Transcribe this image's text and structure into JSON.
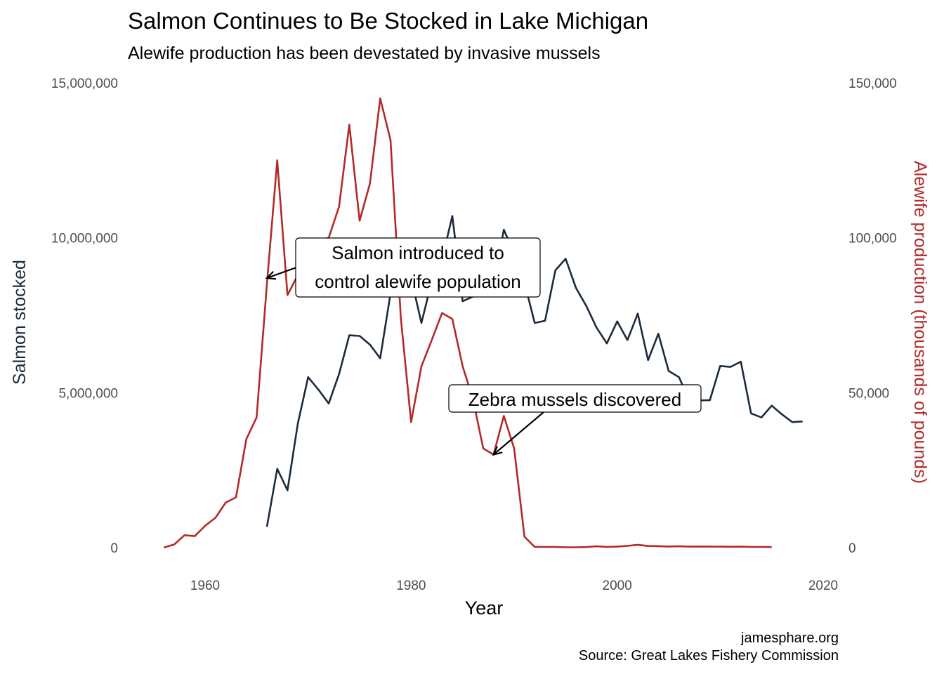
{
  "chart_data": {
    "type": "line",
    "title": "Salmon Continues to Be Stocked in Lake Michigan",
    "subtitle": "Alewife production has been devestated by invasive mussels",
    "xlabel": "Year",
    "ylabel": "Salmon stocked",
    "y2label": "Alewife production (thousands of pounds)",
    "xlim": [
      1952.5,
      2021.5
    ],
    "ylim": [
      -750000,
      15000000
    ],
    "y2lim": [
      -7500,
      150000
    ],
    "x_ticks": [
      1960,
      1980,
      2000,
      2020
    ],
    "x_tick_labels": [
      "1960",
      "1980",
      "2000",
      "2020"
    ],
    "y_ticks": [
      0,
      5000000,
      10000000,
      15000000
    ],
    "y_tick_labels": [
      "0",
      "5,000,000",
      "10,000,000",
      "15,000,000"
    ],
    "y2_ticks": [
      0,
      50000,
      100000,
      150000
    ],
    "y2_tick_labels": [
      "0",
      "50,000",
      "100,000",
      "150,000"
    ],
    "grid": false,
    "colors": {
      "salmon": "#1c2b3c",
      "alewife": "#b22a2a"
    },
    "series": [
      {
        "key": "salmon",
        "axis": "left",
        "x": [
          1966,
          1967,
          1968,
          1969,
          1970,
          1971,
          1972,
          1973,
          1974,
          1975,
          1976,
          1977,
          1978,
          1979,
          1980,
          1981,
          1982,
          1983,
          1984,
          1985,
          1986,
          1987,
          1988,
          1989,
          1990,
          1991,
          1992,
          1993,
          1994,
          1995,
          1996,
          1997,
          1998,
          1999,
          2000,
          2001,
          2002,
          2003,
          2004,
          2005,
          2006,
          2007,
          2008,
          2009,
          2010,
          2011,
          2012,
          2013,
          2014,
          2015,
          2016,
          2017,
          2018
        ],
        "values": [
          670000,
          2540000,
          1850000,
          4000000,
          5500000,
          5100000,
          4650000,
          5600000,
          6850000,
          6830000,
          6550000,
          6110000,
          8200000,
          9600000,
          8700000,
          7250000,
          8600000,
          9300000,
          10700000,
          7950000,
          8100000,
          8200000,
          8500000,
          10260000,
          9500000,
          8550000,
          7250000,
          7320000,
          8950000,
          9320000,
          8380000,
          7800000,
          7100000,
          6590000,
          7300000,
          6700000,
          7550000,
          6050000,
          6900000,
          5700000,
          5500000,
          4750000,
          4750000,
          4760000,
          5860000,
          5830000,
          6000000,
          4330000,
          4200000,
          4580000,
          4300000,
          4050000,
          4070000
        ]
      },
      {
        "key": "alewife",
        "axis": "right",
        "x": [
          1956,
          1957,
          1958,
          1959,
          1960,
          1961,
          1962,
          1963,
          1964,
          1965,
          1966,
          1967,
          1968,
          1969,
          1970,
          1971,
          1972,
          1973,
          1974,
          1975,
          1976,
          1977,
          1978,
          1979,
          1980,
          1981,
          1982,
          1983,
          1984,
          1985,
          1986,
          1987,
          1988,
          1989,
          1990,
          1991,
          1992,
          1993,
          1994,
          1995,
          1996,
          1997,
          1998,
          1999,
          2000,
          2001,
          2002,
          2003,
          2004,
          2005,
          2006,
          2007,
          2008,
          2009,
          2010,
          2011,
          2012,
          2013,
          2014,
          2015
        ],
        "values": [
          0,
          1000,
          4000,
          3700,
          7000,
          9600,
          14500,
          16200,
          35000,
          42000,
          85000,
          125000,
          81500,
          88000,
          99600,
          99000,
          100000,
          110000,
          136500,
          105500,
          117500,
          145000,
          131500,
          74000,
          40500,
          58500,
          67000,
          75700,
          73800,
          58500,
          48000,
          32000,
          30000,
          42500,
          32000,
          3500,
          200,
          200,
          200,
          100,
          100,
          150,
          400,
          200,
          300,
          550,
          900,
          500,
          450,
          350,
          400,
          300,
          350,
          300,
          300,
          250,
          300,
          200,
          200,
          150
        ]
      }
    ],
    "annotations": [
      {
        "lines": [
          "Salmon introduced to",
          "control alewife population"
        ],
        "target_x": 1966,
        "target_y2": 87000
      },
      {
        "lines": [
          "Zebra mussels discovered"
        ],
        "target_x": 1988,
        "target_y2": 30000
      }
    ],
    "caption": [
      "jamesphare.org",
      "Source: Great Lakes Fishery Commission"
    ]
  }
}
